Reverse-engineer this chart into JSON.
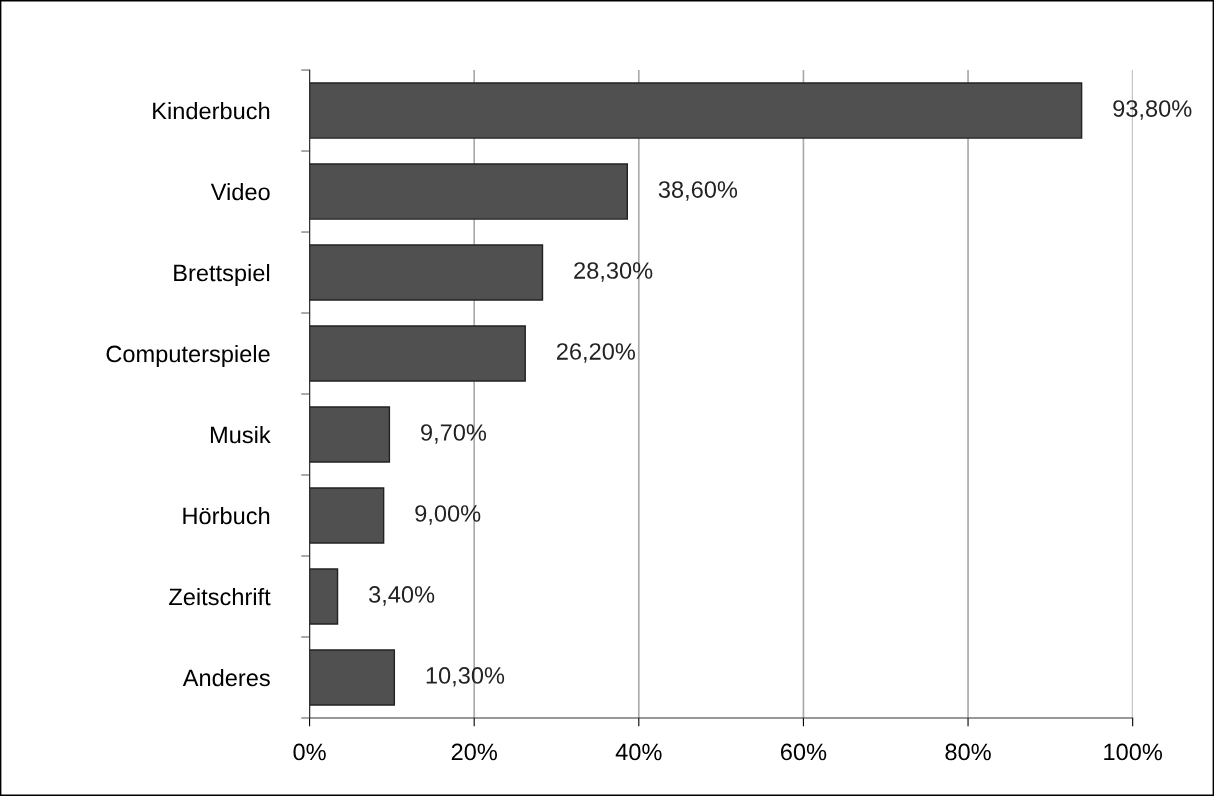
{
  "chart_data": {
    "type": "bar",
    "orientation": "horizontal",
    "categories": [
      "Kinderbuch",
      "Video",
      "Brettspiel",
      "Computerspiele",
      "Musik",
      "Hörbuch",
      "Zeitschrift",
      "Anderes"
    ],
    "values": [
      93.8,
      38.6,
      28.3,
      26.2,
      9.7,
      9.0,
      3.4,
      10.3
    ],
    "value_labels": [
      "93,80%",
      "38,60%",
      "28,30%",
      "26,20%",
      "9,70%",
      "9,00%",
      "3,40%",
      "10,30%"
    ],
    "color": "#505050",
    "xlim": [
      0,
      100
    ],
    "xticks": [
      {
        "value": 0,
        "label": "0%"
      },
      {
        "value": 20,
        "label": "20%"
      },
      {
        "value": 40,
        "label": "40%"
      },
      {
        "value": 60,
        "label": "60%"
      },
      {
        "value": 80,
        "label": "80%"
      },
      {
        "value": 100,
        "label": "100%"
      }
    ],
    "grid": "x",
    "legend": false
  }
}
